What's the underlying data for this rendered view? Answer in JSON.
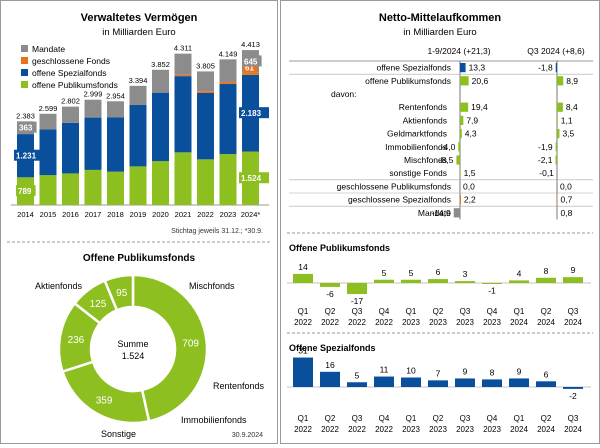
{
  "colors": {
    "mandate": "#8c8c8c",
    "closed": "#e8731a",
    "special": "#0a4f9c",
    "public": "#8cbf1f",
    "neg": "#595959"
  },
  "left": {
    "title": "Verwaltetes Vermögen",
    "subtitle": "in Milliarden Euro",
    "footnote": "Stichtag jeweils 31.12.; *30.9.",
    "legend": [
      "Mandate",
      "geschlossene Fonds",
      "offene Spezialfonds",
      "offene Publikumsfonds"
    ],
    "donut_title": "Offene Publikumsfonds",
    "donut_date": "30.9.2024"
  },
  "right": {
    "title": "Netto-Mittelaufkommen",
    "subtitle": "in Milliarden Euro",
    "col1": "1-9/2024 (+21,3)",
    "col2": "Q3 2024 (+8,6)",
    "public_title": "Offene Publikumsfonds",
    "special_title": "Offene Spezialfonds"
  },
  "chart_data": [
    {
      "type": "bar",
      "title": "Verwaltetes Vermögen",
      "subtitle": "in Milliarden Euro",
      "categories": [
        "2014",
        "2015",
        "2016",
        "2017",
        "2018",
        "2019",
        "2020",
        "2021",
        "2022",
        "2023",
        "2024*"
      ],
      "totals": [
        "2.383",
        "2.599",
        "2.802",
        "2.999",
        "2.954",
        "3.394",
        "3.852",
        "4.311",
        "3.805",
        "4.149",
        "4.413"
      ],
      "total_values": [
        2383,
        2599,
        2802,
        2999,
        2954,
        3394,
        3852,
        4311,
        3805,
        4149,
        4413
      ],
      "series": [
        {
          "name": "offene Publikumsfonds",
          "values": [
            789,
            850,
            900,
            1000,
            950,
            1100,
            1250,
            1500,
            1300,
            1450,
            1524
          ]
        },
        {
          "name": "offene Spezialfonds",
          "values": [
            1231,
            1300,
            1440,
            1490,
            1550,
            1750,
            1950,
            2170,
            1890,
            2000,
            2183
          ]
        },
        {
          "name": "geschlossene Fonds",
          "values": [
            0,
            0,
            0,
            0,
            0,
            0,
            0,
            40,
            50,
            55,
            61
          ]
        },
        {
          "name": "Mandate",
          "values": [
            363,
            449,
            462,
            509,
            454,
            544,
            652,
            601,
            565,
            644,
            645
          ]
        }
      ],
      "data_labels_2014": {
        "Mandate": "363",
        "Spezialfonds": "1.231",
        "Publikumsfonds": "789"
      },
      "data_labels_2024": {
        "Mandate": "645",
        "geschlossene Fonds": "61",
        "Spezialfonds": "2.183",
        "Publikumsfonds": "1.524"
      },
      "ylim": [
        0,
        4700
      ],
      "legend_position": "top-left"
    },
    {
      "type": "pie",
      "title": "Offene Publikumsfonds",
      "center_label": "Summe",
      "center_value": "1.524",
      "slices": [
        {
          "label": "Aktienfonds",
          "value": 709
        },
        {
          "label": "Mischfonds",
          "value": 359
        },
        {
          "label": "Rentenfonds",
          "value": 236
        },
        {
          "label": "Immobilienfonds",
          "value": 125
        },
        {
          "label": "Sonstige",
          "value": 95
        }
      ]
    },
    {
      "type": "bar",
      "title": "Netto-Mittelaufkommen",
      "orientation": "horizontal",
      "columns": [
        "1-9/2024 (+21,3)",
        "Q3 2024 (+8,6)"
      ],
      "rows": [
        {
          "label": "offene Spezialfonds",
          "v1": 13.3,
          "l1": "13,3",
          "v2": -1.8,
          "l2": "-1,8",
          "color": "special",
          "indent": false,
          "rule": true
        },
        {
          "label": "offene Publikumsfonds",
          "v1": 20.6,
          "l1": "20,6",
          "v2": 8.9,
          "l2": "8,9",
          "color": "public",
          "indent": false,
          "rule": false
        },
        {
          "label": "davon:",
          "v1": null,
          "l1": "",
          "v2": null,
          "l2": "",
          "color": "public",
          "indent": true,
          "rule": false
        },
        {
          "label": "Rentenfonds",
          "v1": 19.4,
          "l1": "19,4",
          "v2": 8.4,
          "l2": "8,4",
          "color": "public",
          "indent": true,
          "rule": false
        },
        {
          "label": "Aktienfonds",
          "v1": 7.9,
          "l1": "7,9",
          "v2": 1.1,
          "l2": "1,1",
          "color": "public",
          "indent": true,
          "rule": false
        },
        {
          "label": "Geldmarktfonds",
          "v1": 4.3,
          "l1": "4,3",
          "v2": 3.5,
          "l2": "3,5",
          "color": "public",
          "indent": true,
          "rule": false
        },
        {
          "label": "Immobilienfonds",
          "v1": -4.0,
          "l1": "-4,0",
          "v2": -1.9,
          "l2": "-1,9",
          "color": "public",
          "indent": true,
          "rule": false
        },
        {
          "label": "Mischfonds",
          "v1": -8.5,
          "l1": "-8,5",
          "v2": -2.1,
          "l2": "-2,1",
          "color": "public",
          "indent": true,
          "rule": false
        },
        {
          "label": "sonstige Fonds",
          "v1": 1.5,
          "l1": "1,5",
          "v2": -0.1,
          "l2": "-0,1",
          "color": "public",
          "indent": true,
          "rule": true
        },
        {
          "label": "geschlossene Publikumsfonds",
          "v1": 0.0,
          "l1": "0,0",
          "v2": 0.0,
          "l2": "0,0",
          "color": "closed",
          "indent": false,
          "rule": true
        },
        {
          "label": "geschlossene Spezialfonds",
          "v1": 2.2,
          "l1": "2,2",
          "v2": 0.7,
          "l2": "0,7",
          "color": "closed",
          "indent": false,
          "rule": true
        },
        {
          "label": "Mandate",
          "v1": -14.9,
          "l1": "-14,9",
          "v2": 0.8,
          "l2": "0,8",
          "color": "mandate",
          "indent": false,
          "rule": false
        }
      ]
    },
    {
      "type": "bar",
      "title": "Offene Publikumsfonds",
      "categories": [
        [
          "Q1",
          "2022"
        ],
        [
          "Q2",
          "2022"
        ],
        [
          "Q3",
          "2022"
        ],
        [
          "Q4",
          "2022"
        ],
        [
          "Q1",
          "2023"
        ],
        [
          "Q2",
          "2023"
        ],
        [
          "Q3",
          "2023"
        ],
        [
          "Q4",
          "2023"
        ],
        [
          "Q1",
          "2024"
        ],
        [
          "Q2",
          "2024"
        ],
        [
          "Q3",
          "2024"
        ]
      ],
      "values": [
        14,
        -6,
        -17,
        5,
        5,
        6,
        3,
        -1,
        4,
        8,
        9
      ],
      "labels": [
        "14",
        "-6",
        "-17",
        "5",
        "5",
        "6",
        "3",
        "-1",
        "4",
        "8",
        "9"
      ]
    },
    {
      "type": "bar",
      "title": "Offene Spezialfonds",
      "categories": [
        [
          "Q1",
          "2022"
        ],
        [
          "Q2",
          "2022"
        ],
        [
          "Q3",
          "2022"
        ],
        [
          "Q4",
          "2022"
        ],
        [
          "Q1",
          "2023"
        ],
        [
          "Q2",
          "2023"
        ],
        [
          "Q3",
          "2023"
        ],
        [
          "Q4",
          "2023"
        ],
        [
          "Q1",
          "2024"
        ],
        [
          "Q2",
          "2024"
        ],
        [
          "Q3",
          "2024"
        ]
      ],
      "values": [
        31,
        16,
        5,
        11,
        10,
        7,
        9,
        8,
        9,
        6,
        -2
      ],
      "labels": [
        "31",
        "16",
        "5",
        "11",
        "10",
        "7",
        "9",
        "8",
        "9",
        "6",
        "-2"
      ]
    }
  ]
}
